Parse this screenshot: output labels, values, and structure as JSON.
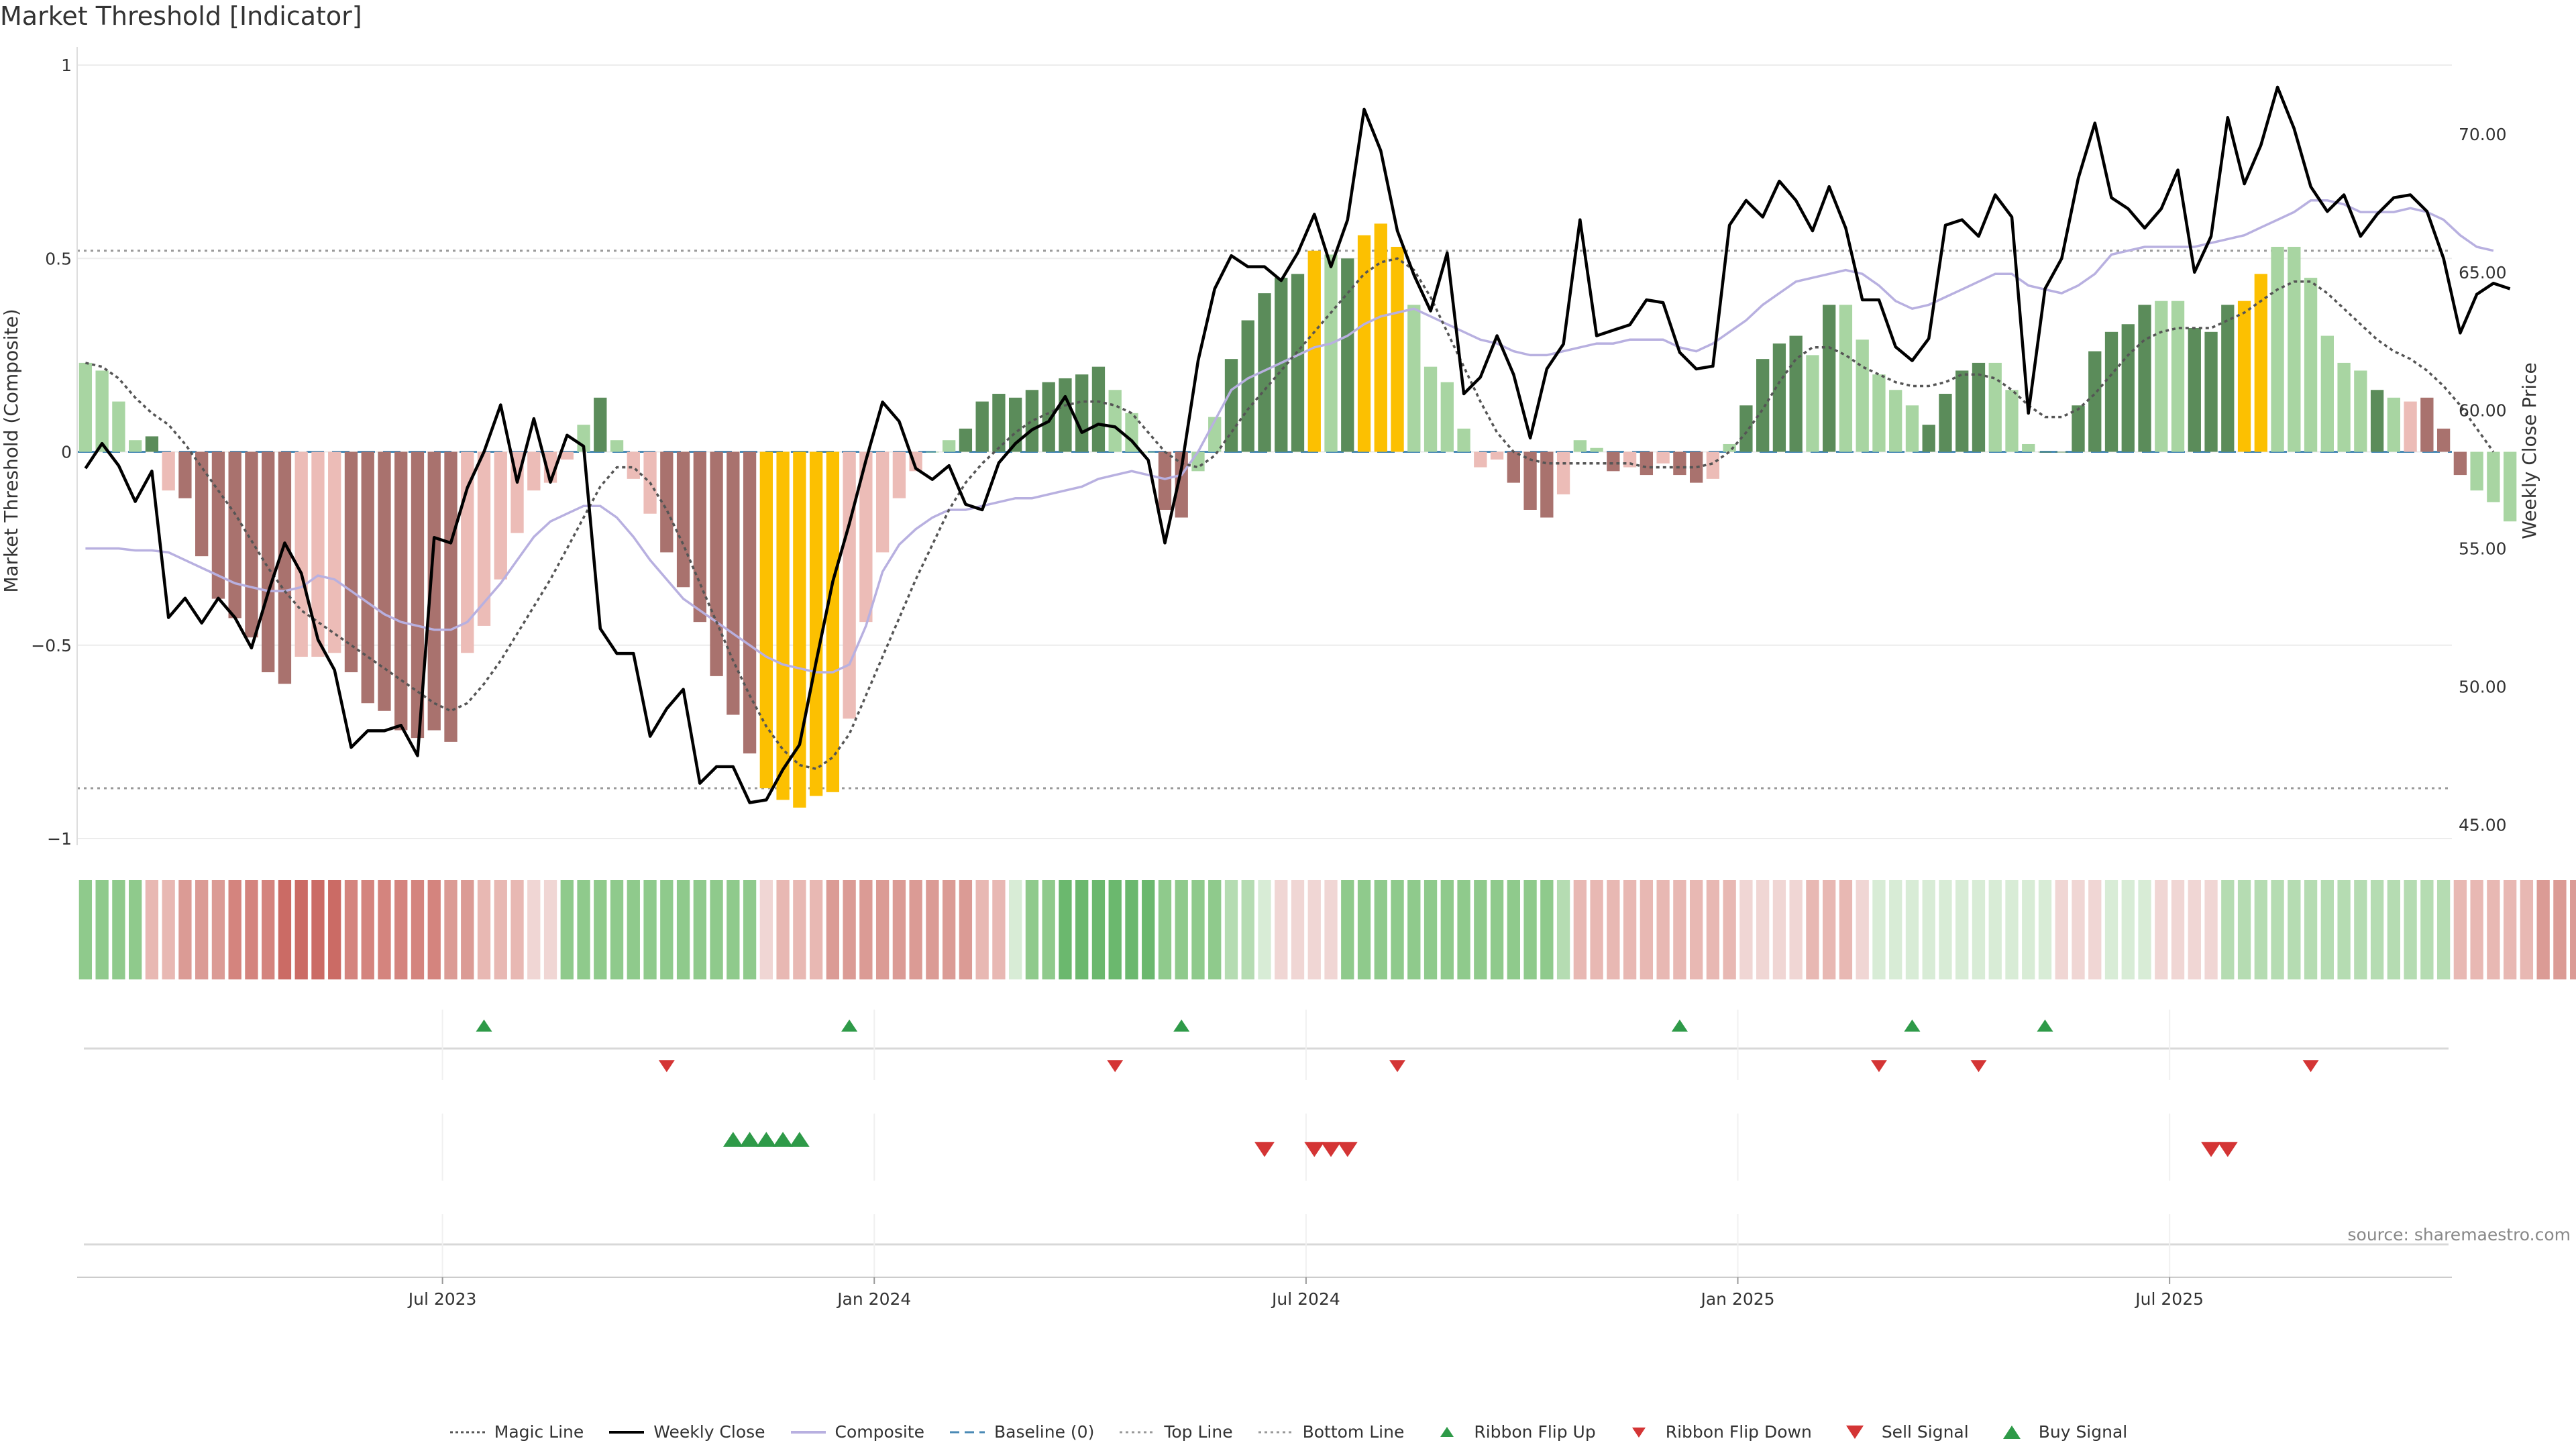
{
  "title": "Market Threshold [Indicator]",
  "source": "source: sharemaestro.com",
  "colors": {
    "dark_green": "#5b8c5a",
    "light_green": "#a8d5a2",
    "dark_red": "#a9726e",
    "light_red": "#ecbcb7",
    "gold": "#fcc001",
    "close": "#000000",
    "composite": "#b8b0e0",
    "magic": "#555555",
    "baseline": "#4a8ab5",
    "ref": "#999999",
    "up": "#2e9a48",
    "down": "#d43535"
  },
  "legend": [
    {
      "label": "Magic Line",
      "key": "dotted-dark"
    },
    {
      "label": "Weekly Close",
      "key": "solid-black"
    },
    {
      "label": "Composite",
      "key": "solid-lavender"
    },
    {
      "label": "Baseline (0)",
      "key": "dashed-blue"
    },
    {
      "label": "Top Line",
      "key": "dotted-gray"
    },
    {
      "label": "Bottom Line",
      "key": "dotted-gray"
    },
    {
      "label": "Ribbon Flip Up",
      "key": "triangle-up-small"
    },
    {
      "label": "Ribbon Flip Down",
      "key": "triangle-down-small"
    },
    {
      "label": "Sell Signal",
      "key": "triangle-down-large"
    },
    {
      "label": "Buy Signal",
      "key": "triangle-up-large"
    }
  ],
  "chart_data": {
    "type": "bar+line",
    "title": "Market Threshold [Indicator]",
    "ylabel_left": "Market Threshold (Composite)",
    "ylabel_right": "Weekly Close Price",
    "ylim_left": [
      -1,
      1
    ],
    "yticks_left": [
      1,
      0.5,
      0,
      -0.5,
      -1
    ],
    "ytick_labels_left": [
      "1",
      "0.5",
      "0",
      "−0.5",
      "−1"
    ],
    "ylim_right": [
      44.5,
      72.5
    ],
    "yticks_right": [
      70,
      65,
      60,
      55,
      50,
      45
    ],
    "ytick_labels_right": [
      "70.00",
      "65.00",
      "60.00",
      "55.00",
      "50.00",
      "45.00"
    ],
    "x_tick_labels": [
      "Jul 2023",
      "Jan 2024",
      "Jul 2024",
      "Jan 2025",
      "Jul 2025"
    ],
    "x_tick_weeks": [
      22,
      48,
      74,
      100,
      126
    ],
    "top_line": 0.52,
    "bottom_line": -0.87,
    "composite_bars": [
      0.23,
      0.21,
      0.13,
      0.03,
      0.04,
      -0.1,
      -0.12,
      -0.27,
      -0.38,
      -0.43,
      -0.48,
      -0.57,
      -0.6,
      -0.53,
      -0.53,
      -0.52,
      -0.57,
      -0.65,
      -0.67,
      -0.72,
      -0.74,
      -0.72,
      -0.75,
      -0.52,
      -0.45,
      -0.33,
      -0.21,
      -0.1,
      -0.08,
      -0.02,
      0.07,
      0.14,
      0.03,
      -0.07,
      -0.16,
      -0.26,
      -0.35,
      -0.44,
      -0.58,
      -0.68,
      -0.78,
      -0.87,
      -0.9,
      -0.92,
      -0.89,
      -0.88,
      -0.69,
      -0.44,
      -0.26,
      -0.12,
      -0.05,
      0.0,
      0.03,
      0.06,
      0.13,
      0.15,
      0.14,
      0.16,
      0.18,
      0.19,
      0.2,
      0.22,
      0.16,
      0.1,
      0.0,
      -0.15,
      -0.17,
      -0.05,
      0.09,
      0.24,
      0.34,
      0.41,
      0.45,
      0.46,
      0.52,
      0.51,
      0.5,
      0.56,
      0.59,
      0.53,
      0.38,
      0.22,
      0.18,
      0.06,
      -0.04,
      -0.02,
      -0.08,
      -0.15,
      -0.17,
      -0.11,
      0.03,
      0.01,
      -0.05,
      -0.04,
      -0.06,
      -0.03,
      -0.06,
      -0.08,
      -0.07,
      0.02,
      0.12,
      0.24,
      0.28,
      0.3,
      0.25,
      0.38,
      0.38,
      0.29,
      0.2,
      0.16,
      0.12,
      0.07,
      0.15,
      0.21,
      0.23,
      0.23,
      0.16,
      0.02,
      0.0,
      0.0,
      0.12,
      0.26,
      0.31,
      0.33,
      0.38,
      0.39,
      0.39,
      0.32,
      0.31,
      0.38,
      0.39,
      0.46,
      0.53,
      0.53,
      0.45,
      0.3,
      0.23,
      0.21,
      0.16,
      0.14,
      0.13,
      0.14,
      0.06,
      -0.06,
      -0.1,
      -0.13,
      -0.18
    ],
    "bar_categories": [
      "lg",
      "lg",
      "lg",
      "lg",
      "dg",
      "lr",
      "dr",
      "dr",
      "dr",
      "dr",
      "dr",
      "dr",
      "dr",
      "lr",
      "lr",
      "lr",
      "dr",
      "dr",
      "dr",
      "dr",
      "dr",
      "dr",
      "dr",
      "lr",
      "lr",
      "lr",
      "lr",
      "lr",
      "lr",
      "lr",
      "lg",
      "dg",
      "lg",
      "lr",
      "lr",
      "dr",
      "dr",
      "dr",
      "dr",
      "dr",
      "dr",
      "y",
      "y",
      "y",
      "y",
      "y",
      "lr",
      "lr",
      "lr",
      "lr",
      "lr",
      "lg",
      "lg",
      "dg",
      "dg",
      "dg",
      "dg",
      "dg",
      "dg",
      "dg",
      "dg",
      "dg",
      "lg",
      "lg",
      "lg",
      "dr",
      "dr",
      "lg",
      "lg",
      "dg",
      "dg",
      "dg",
      "dg",
      "dg",
      "y",
      "lg",
      "dg",
      "y",
      "y",
      "y",
      "lg",
      "lg",
      "lg",
      "lg",
      "lr",
      "lr",
      "dr",
      "dr",
      "dr",
      "lr",
      "lg",
      "lg",
      "dr",
      "lr",
      "dr",
      "lr",
      "dr",
      "dr",
      "lr",
      "lg",
      "dg",
      "dg",
      "dg",
      "dg",
      "lg",
      "dg",
      "lg",
      "lg",
      "lg",
      "lg",
      "lg",
      "dg",
      "dg",
      "dg",
      "dg",
      "lg",
      "lg",
      "lg",
      "dg",
      "dg",
      "dg",
      "dg",
      "dg",
      "dg",
      "dg",
      "lg",
      "lg",
      "dg",
      "dg",
      "dg",
      "y",
      "y",
      "lg",
      "lg",
      "lg",
      "lg",
      "lg",
      "lg",
      "dg",
      "lg",
      "lr",
      "dr",
      "dr",
      "dr"
    ],
    "weekly_close": [
      57.9,
      58.8,
      58.0,
      56.7,
      57.8,
      52.5,
      53.2,
      52.3,
      53.2,
      52.5,
      51.4,
      53.4,
      55.2,
      54.1,
      51.7,
      50.6,
      47.8,
      48.4,
      48.4,
      48.6,
      47.5,
      55.4,
      55.2,
      57.2,
      58.5,
      60.2,
      57.4,
      59.7,
      57.4,
      59.1,
      58.7,
      52.1,
      51.2,
      51.2,
      48.2,
      49.2,
      49.9,
      46.5,
      47.1,
      47.1,
      45.8,
      45.9,
      47.0,
      47.9,
      50.9,
      53.8,
      55.9,
      58.2,
      60.3,
      59.6,
      57.9,
      57.5,
      58.0,
      56.6,
      56.4,
      58.1,
      58.8,
      59.3,
      59.6,
      60.5,
      59.2,
      59.5,
      59.4,
      58.9,
      58.2,
      55.2,
      57.9,
      61.8,
      64.4,
      65.6,
      65.2,
      65.2,
      64.7,
      65.7,
      67.1,
      65.2,
      66.9,
      70.9,
      69.4,
      66.5,
      64.9,
      63.6,
      65.7,
      60.6,
      61.2,
      62.7,
      61.3,
      59.0,
      61.5,
      62.4,
      66.9,
      62.7,
      62.9,
      63.1,
      64.0,
      63.9,
      62.1,
      61.5,
      61.6,
      66.7,
      67.6,
      67.0,
      68.3,
      67.6,
      66.5,
      68.1,
      66.6,
      64.0,
      64.0,
      62.3,
      61.8,
      62.6,
      66.7,
      66.9,
      66.3,
      67.8,
      67.0,
      59.9,
      64.4,
      65.5,
      68.4,
      70.4,
      67.7,
      67.3,
      66.6,
      67.3,
      68.7,
      65.0,
      66.3,
      70.6,
      68.2,
      69.6,
      71.7,
      70.2,
      68.1,
      67.2,
      67.8,
      66.3,
      67.1,
      67.7,
      67.8,
      67.2,
      65.5,
      62.8,
      64.2,
      64.6,
      64.4
    ],
    "composite_line": [
      -0.25,
      -0.25,
      -0.25,
      -0.255,
      -0.255,
      -0.26,
      -0.28,
      -0.3,
      -0.32,
      -0.34,
      -0.35,
      -0.36,
      -0.36,
      -0.35,
      -0.32,
      -0.33,
      -0.36,
      -0.39,
      -0.42,
      -0.44,
      -0.45,
      -0.46,
      -0.46,
      -0.44,
      -0.39,
      -0.34,
      -0.28,
      -0.22,
      -0.18,
      -0.16,
      -0.14,
      -0.14,
      -0.17,
      -0.22,
      -0.28,
      -0.33,
      -0.38,
      -0.41,
      -0.44,
      -0.47,
      -0.5,
      -0.53,
      -0.55,
      -0.56,
      -0.57,
      -0.57,
      -0.55,
      -0.45,
      -0.31,
      -0.24,
      -0.2,
      -0.17,
      -0.15,
      -0.15,
      -0.14,
      -0.13,
      -0.12,
      -0.12,
      -0.11,
      -0.1,
      -0.09,
      -0.07,
      -0.06,
      -0.05,
      -0.06,
      -0.07,
      -0.06,
      0.0,
      0.08,
      0.16,
      0.19,
      0.21,
      0.23,
      0.25,
      0.27,
      0.28,
      0.3,
      0.33,
      0.35,
      0.36,
      0.37,
      0.35,
      0.33,
      0.31,
      0.29,
      0.28,
      0.26,
      0.25,
      0.25,
      0.26,
      0.27,
      0.28,
      0.28,
      0.29,
      0.29,
      0.29,
      0.27,
      0.26,
      0.28,
      0.31,
      0.34,
      0.38,
      0.41,
      0.44,
      0.45,
      0.46,
      0.47,
      0.46,
      0.43,
      0.39,
      0.37,
      0.38,
      0.4,
      0.42,
      0.44,
      0.46,
      0.46,
      0.43,
      0.42,
      0.41,
      0.43,
      0.46,
      0.51,
      0.52,
      0.53,
      0.53,
      0.53,
      0.53,
      0.54,
      0.55,
      0.56,
      0.58,
      0.6,
      0.62,
      0.65,
      0.65,
      0.64,
      0.62,
      0.62,
      0.62,
      0.63,
      0.62,
      0.6,
      0.56,
      0.53,
      0.52
    ],
    "magic_line": [
      0.23,
      0.22,
      0.19,
      0.14,
      0.1,
      0.07,
      0.02,
      -0.04,
      -0.1,
      -0.16,
      -0.23,
      -0.3,
      -0.36,
      -0.41,
      -0.44,
      -0.47,
      -0.5,
      -0.53,
      -0.56,
      -0.59,
      -0.62,
      -0.65,
      -0.67,
      -0.65,
      -0.6,
      -0.54,
      -0.47,
      -0.4,
      -0.33,
      -0.25,
      -0.17,
      -0.09,
      -0.04,
      -0.04,
      -0.08,
      -0.15,
      -0.24,
      -0.34,
      -0.44,
      -0.54,
      -0.63,
      -0.71,
      -0.77,
      -0.81,
      -0.82,
      -0.79,
      -0.73,
      -0.63,
      -0.53,
      -0.43,
      -0.33,
      -0.24,
      -0.15,
      -0.08,
      -0.03,
      0.01,
      0.05,
      0.08,
      0.1,
      0.12,
      0.13,
      0.13,
      0.12,
      0.1,
      0.05,
      0.0,
      -0.03,
      -0.04,
      -0.01,
      0.05,
      0.11,
      0.16,
      0.21,
      0.26,
      0.31,
      0.36,
      0.41,
      0.46,
      0.49,
      0.5,
      0.47,
      0.4,
      0.31,
      0.22,
      0.13,
      0.05,
      0.0,
      -0.02,
      -0.03,
      -0.03,
      -0.03,
      -0.03,
      -0.03,
      -0.03,
      -0.04,
      -0.04,
      -0.04,
      -0.04,
      -0.03,
      0.0,
      0.05,
      0.11,
      0.18,
      0.24,
      0.27,
      0.27,
      0.25,
      0.22,
      0.2,
      0.18,
      0.17,
      0.17,
      0.18,
      0.2,
      0.2,
      0.19,
      0.16,
      0.12,
      0.09,
      0.09,
      0.11,
      0.15,
      0.2,
      0.25,
      0.29,
      0.31,
      0.32,
      0.32,
      0.32,
      0.34,
      0.36,
      0.39,
      0.42,
      0.44,
      0.44,
      0.41,
      0.37,
      0.33,
      0.29,
      0.26,
      0.24,
      0.21,
      0.17,
      0.12,
      0.06,
      0.0
    ],
    "ribbon": [
      "g2",
      "g2",
      "g2",
      "g2",
      "r1",
      "r1",
      "r2",
      "r2",
      "r2",
      "r3",
      "r3",
      "r3",
      "r4",
      "r4",
      "r4",
      "r4",
      "r3",
      "r3",
      "r3",
      "r3",
      "r3",
      "r3",
      "r2",
      "r2",
      "r1",
      "r1",
      "r1",
      "r0",
      "r0",
      "g2",
      "g2",
      "g2",
      "g2",
      "g2",
      "g2",
      "g2",
      "g2",
      "g2",
      "g2",
      "g2",
      "g2",
      "r0",
      "r1",
      "r1",
      "r1",
      "r2",
      "r2",
      "r2",
      "r2",
      "r2",
      "r2",
      "r2",
      "r2",
      "r2",
      "r1",
      "r1",
      "g0",
      "g2",
      "g2",
      "g3",
      "g3",
      "g3",
      "g3",
      "g3",
      "g3",
      "g2",
      "g2",
      "g2",
      "g2",
      "g1",
      "g1",
      "g0",
      "r0",
      "r0",
      "r0",
      "r0",
      "g2",
      "g2",
      "g2",
      "g2",
      "g2",
      "g2",
      "g2",
      "g2",
      "g2",
      "g2",
      "g2",
      "g2",
      "g2",
      "g1",
      "r1",
      "r1",
      "r1",
      "r1",
      "r1",
      "r1",
      "r1",
      "r1",
      "r1",
      "r1",
      "r0",
      "r0",
      "r0",
      "r0",
      "r1",
      "r1",
      "r1",
      "r0",
      "g0",
      "g0",
      "g0",
      "g0",
      "g0",
      "g0",
      "g0",
      "g0",
      "g0",
      "g0",
      "g0",
      "r0",
      "r0",
      "r0",
      "g0",
      "g0",
      "g0",
      "r0",
      "r0",
      "r0",
      "r0",
      "g1",
      "g1",
      "g1",
      "g1",
      "g1",
      "g1",
      "g1",
      "g1",
      "g1",
      "g1",
      "g1",
      "g1",
      "g1",
      "g1",
      "r1",
      "r1",
      "r1",
      "r1",
      "r1",
      "r2",
      "r2",
      "r2"
    ],
    "ribbon_flip_up_weeks": [
      24,
      46,
      66,
      96,
      110,
      118
    ],
    "ribbon_flip_down_weeks": [
      35,
      62,
      79,
      108,
      114,
      134
    ],
    "buy_signal_weeks": [
      39,
      40,
      41,
      42,
      43
    ],
    "sell_signal_weeks": [
      71,
      74,
      75,
      76,
      128,
      129
    ],
    "weeks": 143
  }
}
